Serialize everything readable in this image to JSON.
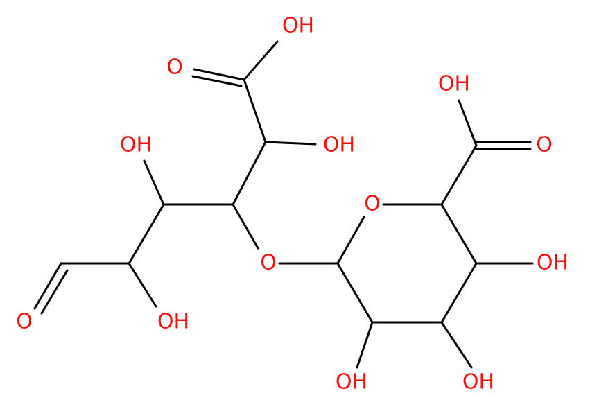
{
  "atoms": [
    {
      "label": "OH"
    },
    {
      "label": "O"
    },
    {
      "label": "OH"
    },
    {
      "label": "OH"
    },
    {
      "label": "OH"
    },
    {
      "label": "O"
    },
    {
      "label": "O"
    },
    {
      "label": "O"
    },
    {
      "label": "OH"
    },
    {
      "label": "O"
    },
    {
      "label": "OH"
    },
    {
      "label": "OH"
    },
    {
      "label": "OH"
    }
  ]
}
